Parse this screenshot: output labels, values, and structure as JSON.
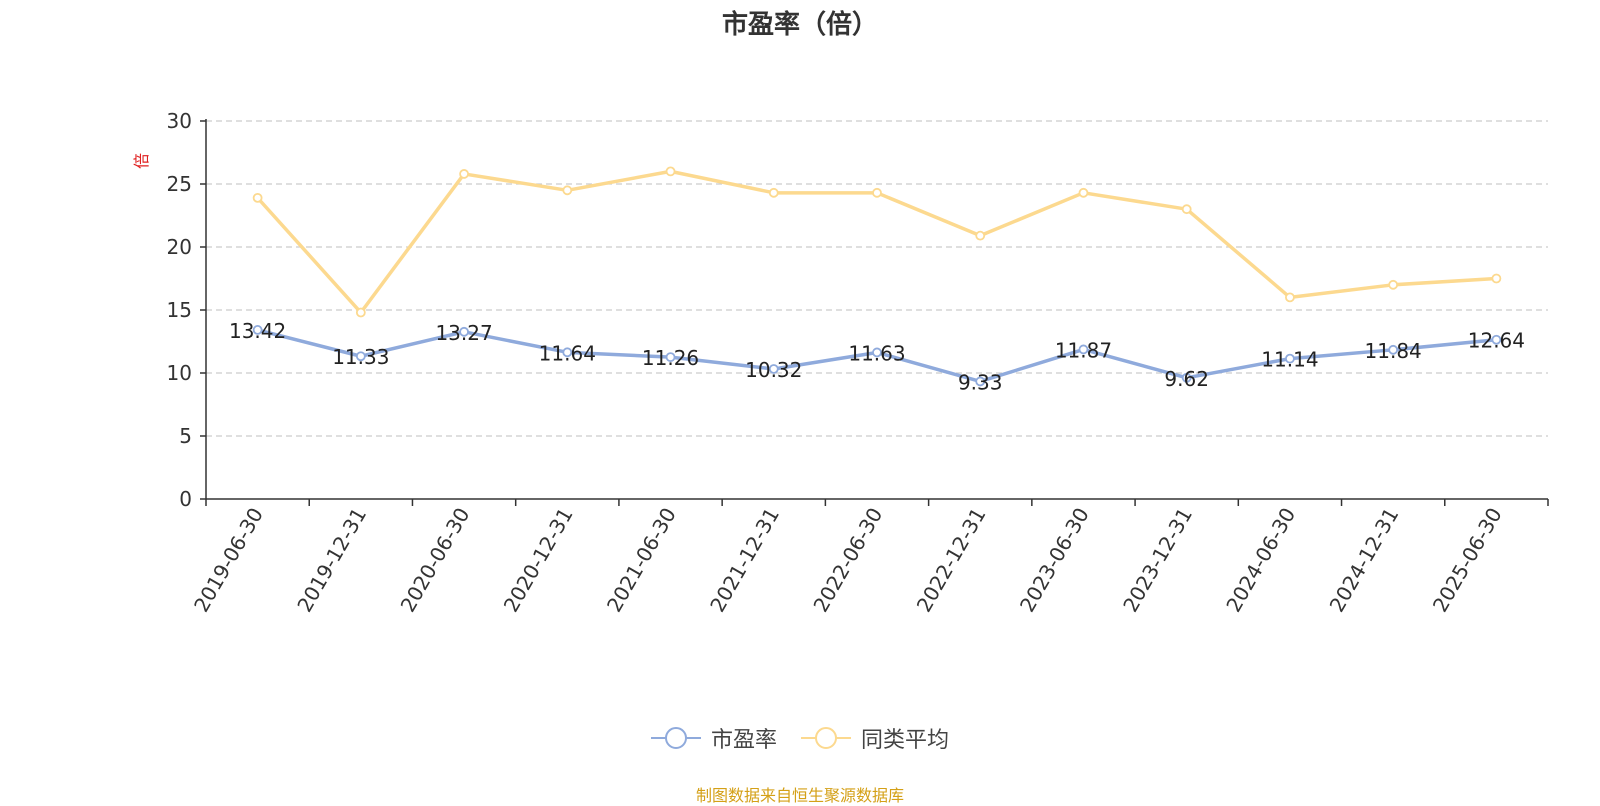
{
  "chart_data": {
    "type": "line",
    "title": "市盈率（倍）",
    "ylabel": "倍",
    "xlabel": "",
    "ylim": [
      0,
      30
    ],
    "yticks": [
      0,
      5,
      10,
      15,
      20,
      25,
      30
    ],
    "grid": true,
    "legend_position": "bottom",
    "categories": [
      "2019-06-30",
      "2019-12-31",
      "2020-06-30",
      "2020-12-31",
      "2021-06-30",
      "2021-12-31",
      "2022-06-30",
      "2022-12-31",
      "2023-06-30",
      "2023-12-31",
      "2024-06-30",
      "2024-12-31",
      "2025-06-30"
    ],
    "series": [
      {
        "name": "市盈率",
        "color": "#8faadc",
        "show_labels": true,
        "values": [
          13.42,
          11.33,
          13.27,
          11.64,
          11.26,
          10.32,
          11.63,
          9.33,
          11.87,
          9.62,
          11.14,
          11.84,
          12.64
        ]
      },
      {
        "name": "同类平均",
        "color": "#fcd98f",
        "show_labels": false,
        "values": [
          23.9,
          14.8,
          25.8,
          24.5,
          26.0,
          24.3,
          24.3,
          20.9,
          24.3,
          23.0,
          16.0,
          17.0,
          17.5
        ]
      }
    ]
  },
  "source_note": "制图数据来自恒生聚源数据库"
}
